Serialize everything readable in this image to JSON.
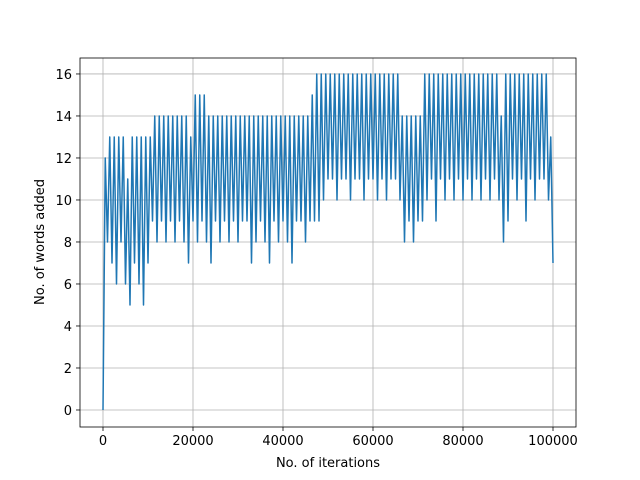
{
  "chart_data": {
    "type": "line",
    "xlabel": "No. of iterations",
    "ylabel": "No. of words added",
    "color": "#1f77b4",
    "grid": true,
    "xlim": [
      -5111,
      105111
    ],
    "ylim": [
      -0.81,
      16.76
    ],
    "xticks": [
      0,
      20000,
      40000,
      60000,
      80000,
      100000
    ],
    "yticks": [
      0,
      2,
      4,
      6,
      8,
      10,
      12,
      14,
      16
    ],
    "x": [
      0,
      500,
      1000,
      1500,
      2000,
      2500,
      3000,
      3500,
      4000,
      4500,
      5000,
      5500,
      6000,
      6500,
      7000,
      7500,
      8000,
      8500,
      9000,
      9500,
      10000,
      10500,
      11000,
      11500,
      12000,
      12500,
      13000,
      13500,
      14000,
      14500,
      15000,
      15500,
      16000,
      16500,
      17000,
      17500,
      18000,
      18500,
      19000,
      19500,
      20000,
      20500,
      21000,
      21500,
      22000,
      22500,
      23000,
      23500,
      24000,
      24500,
      25000,
      25500,
      26000,
      26500,
      27000,
      27500,
      28000,
      28500,
      29000,
      29500,
      30000,
      30500,
      31000,
      31500,
      32000,
      32500,
      33000,
      33500,
      34000,
      34500,
      35000,
      35500,
      36000,
      36500,
      37000,
      37500,
      38000,
      38500,
      39000,
      39500,
      40000,
      40500,
      41000,
      41500,
      42000,
      42500,
      43000,
      43500,
      44000,
      44500,
      45000,
      45500,
      46000,
      46500,
      47000,
      47500,
      48000,
      48500,
      49000,
      49500,
      50000,
      50500,
      51000,
      51500,
      52000,
      52500,
      53000,
      53500,
      54000,
      54500,
      55000,
      55500,
      56000,
      56500,
      57000,
      57500,
      58000,
      58500,
      59000,
      59500,
      60000,
      60500,
      61000,
      61500,
      62000,
      62500,
      63000,
      63500,
      64000,
      64500,
      65000,
      65500,
      66000,
      66500,
      67000,
      67500,
      68000,
      68500,
      69000,
      69500,
      70000,
      70500,
      71000,
      71500,
      72000,
      72500,
      73000,
      73500,
      74000,
      74500,
      75000,
      75500,
      76000,
      76500,
      77000,
      77500,
      78000,
      78500,
      79000,
      79500,
      80000,
      80500,
      81000,
      81500,
      82000,
      82500,
      83000,
      83500,
      84000,
      84500,
      85000,
      85500,
      86000,
      86500,
      87000,
      87500,
      88000,
      88500,
      89000,
      89500,
      90000,
      90500,
      91000,
      91500,
      92000,
      92500,
      93000,
      93500,
      94000,
      94500,
      95000,
      95500,
      96000,
      96500,
      97000,
      97500,
      98000,
      98500,
      99000,
      99500,
      100000
    ],
    "values": [
      0,
      12,
      8,
      13,
      7,
      13,
      6,
      13,
      8,
      13,
      6,
      11,
      5,
      13,
      7,
      13,
      6,
      13,
      5,
      13,
      7,
      13,
      9,
      14,
      8,
      14,
      9,
      14,
      8,
      14,
      9,
      14,
      8,
      14,
      9,
      14,
      8,
      14,
      7,
      13,
      9,
      15,
      8,
      15,
      9,
      15,
      8,
      14,
      7,
      14,
      9,
      14,
      8,
      14,
      9,
      14,
      8,
      14,
      9,
      14,
      8,
      14,
      9,
      14,
      9,
      14,
      7,
      14,
      8,
      14,
      9,
      14,
      8,
      14,
      7,
      14,
      9,
      14,
      8,
      14,
      9,
      14,
      8,
      14,
      7,
      14,
      9,
      14,
      9,
      14,
      8,
      14,
      9,
      15,
      9,
      16,
      9,
      16,
      10,
      16,
      11,
      16,
      11,
      16,
      10,
      16,
      11,
      16,
      11,
      16,
      10,
      16,
      11,
      16,
      11,
      16,
      10,
      16,
      11,
      16,
      11,
      16,
      10,
      16,
      11,
      16,
      10,
      16,
      11,
      16,
      11,
      16,
      10,
      14,
      8,
      14,
      9,
      14,
      8,
      14,
      9,
      14,
      9,
      16,
      10,
      16,
      11,
      16,
      9,
      16,
      11,
      16,
      10,
      16,
      11,
      16,
      10,
      16,
      11,
      16,
      10,
      16,
      11,
      16,
      10,
      16,
      11,
      16,
      10,
      16,
      11,
      16,
      10,
      16,
      11,
      16,
      10,
      14,
      8,
      16,
      9,
      16,
      11,
      16,
      10,
      16,
      11,
      16,
      9,
      16,
      11,
      16,
      10,
      16,
      11,
      16,
      11,
      16,
      10,
      13,
      7
    ]
  }
}
